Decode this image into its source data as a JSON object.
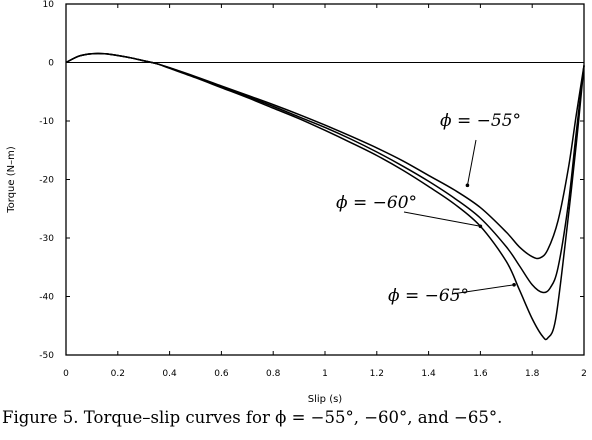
{
  "caption": "Figure 5. Torque–slip curves for ϕ = −55°, −60°, and −65°.",
  "chart_data": {
    "type": "line",
    "xlabel": "Slip (s)",
    "ylabel": "Torque (N–m)",
    "xlim": [
      0,
      2
    ],
    "ylim": [
      -50,
      10
    ],
    "xticks": [
      0,
      0.2,
      0.4,
      0.6,
      0.8,
      1,
      1.2,
      1.4,
      1.6,
      1.8,
      2
    ],
    "xtick_labels": [
      "0",
      "0.2",
      "0.4",
      "0.6",
      "0.8",
      "1",
      "1.2",
      "1.4",
      "1.6",
      "1.8",
      "2"
    ],
    "yticks": [
      10,
      0,
      -10,
      -20,
      -30,
      -40,
      -50
    ],
    "ytick_labels": [
      "10",
      "0",
      "-10",
      "-20",
      "-30",
      "-40",
      "-50"
    ],
    "grid": false,
    "zero_line": true,
    "annotations": [
      {
        "text": "ϕ = −55°",
        "series_index": 0,
        "x": 1.55,
        "y": -21
      },
      {
        "text": "ϕ = −60°",
        "series_index": 1,
        "x": 1.6,
        "y": -28
      },
      {
        "text": "ϕ = −65°",
        "series_index": 2,
        "x": 1.73,
        "y": -38
      }
    ],
    "series": [
      {
        "x": [
          0,
          0.05,
          0.1,
          0.15,
          0.2,
          0.25,
          0.3,
          0.35,
          0.4,
          0.5,
          0.6,
          0.7,
          0.8,
          0.9,
          1.0,
          1.1,
          1.2,
          1.3,
          1.4,
          1.5,
          1.6,
          1.7,
          1.75,
          1.8,
          1.83,
          1.86,
          1.9,
          1.94,
          1.97,
          2.0
        ],
        "values": [
          0,
          1.1,
          1.5,
          1.5,
          1.2,
          0.8,
          0.3,
          -0.2,
          -0.9,
          -2.4,
          -4.0,
          -5.6,
          -7.2,
          -8.9,
          -10.7,
          -12.6,
          -14.6,
          -16.8,
          -19.3,
          -21.8,
          -24.8,
          -29.0,
          -31.5,
          -33.2,
          -33.4,
          -32.0,
          -27.0,
          -18.0,
          -9.0,
          -0.5
        ]
      },
      {
        "x": [
          0,
          0.05,
          0.1,
          0.15,
          0.2,
          0.25,
          0.3,
          0.35,
          0.4,
          0.5,
          0.6,
          0.7,
          0.8,
          0.9,
          1.0,
          1.1,
          1.2,
          1.3,
          1.4,
          1.5,
          1.6,
          1.7,
          1.75,
          1.8,
          1.84,
          1.87,
          1.9,
          1.94,
          1.97,
          2.0
        ],
        "values": [
          0,
          1.1,
          1.5,
          1.5,
          1.2,
          0.8,
          0.3,
          -0.2,
          -0.9,
          -2.5,
          -4.1,
          -5.8,
          -7.5,
          -9.3,
          -11.1,
          -13.1,
          -15.3,
          -17.7,
          -20.3,
          -23.2,
          -26.6,
          -31.5,
          -34.7,
          -38.0,
          -39.3,
          -38.5,
          -35.0,
          -24.0,
          -12.0,
          -0.5
        ]
      },
      {
        "x": [
          0,
          0.05,
          0.1,
          0.15,
          0.2,
          0.25,
          0.3,
          0.35,
          0.4,
          0.5,
          0.6,
          0.7,
          0.8,
          0.9,
          1.0,
          1.1,
          1.2,
          1.3,
          1.4,
          1.5,
          1.6,
          1.7,
          1.75,
          1.8,
          1.84,
          1.86,
          1.89,
          1.93,
          1.97,
          2.0
        ],
        "values": [
          0,
          1.1,
          1.5,
          1.5,
          1.2,
          0.8,
          0.3,
          -0.2,
          -1.0,
          -2.6,
          -4.3,
          -6.0,
          -7.8,
          -9.6,
          -11.6,
          -13.7,
          -15.9,
          -18.4,
          -21.2,
          -24.2,
          -28.0,
          -34.0,
          -38.8,
          -43.8,
          -46.8,
          -47.1,
          -44.0,
          -30.0,
          -14.0,
          -0.5
        ]
      }
    ]
  }
}
